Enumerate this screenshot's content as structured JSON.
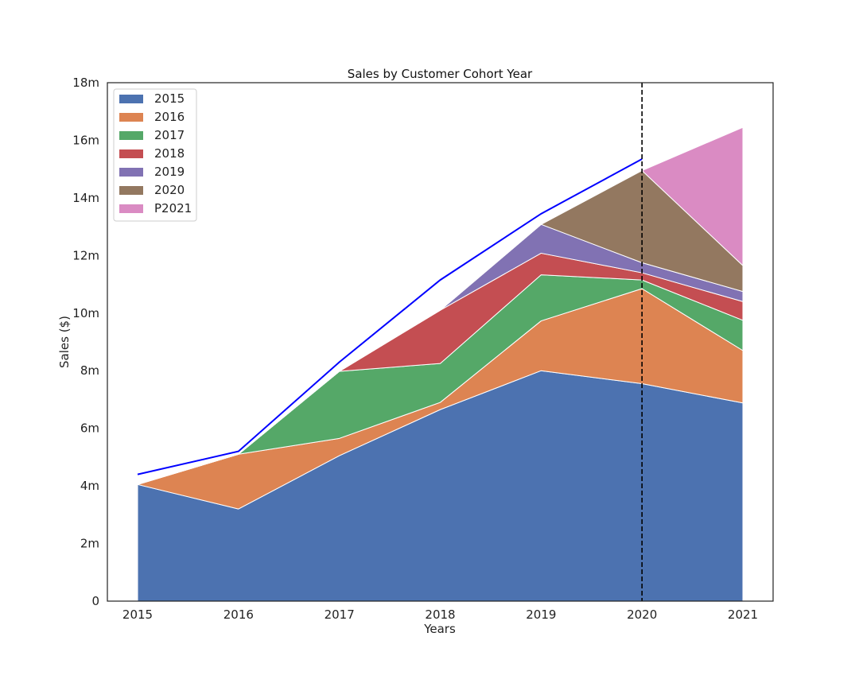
{
  "chart_data": {
    "type": "area",
    "title": "Sales by Customer Cohort Year",
    "xlabel": "Years",
    "ylabel": "Sales ($)",
    "x": [
      "2015",
      "2016",
      "2017",
      "2018",
      "2019",
      "2020",
      "2021"
    ],
    "ylim": [
      0,
      18
    ],
    "y_ticks": [
      0,
      2,
      4,
      6,
      8,
      10,
      12,
      14,
      16,
      18
    ],
    "y_tick_labels": [
      "0",
      "2m",
      "4m",
      "6m",
      "8m",
      "10m",
      "12m",
      "14m",
      "16m",
      "18m"
    ],
    "grid": false,
    "legend_position": "top-left",
    "stacked": true,
    "series": [
      {
        "name": "2015",
        "color": "#4c72b0",
        "values": [
          4.05,
          3.2,
          5.05,
          6.65,
          8.0,
          7.55,
          6.88
        ]
      },
      {
        "name": "2016",
        "color": "#dd8452",
        "values": [
          0,
          1.9,
          0.6,
          0.25,
          1.73,
          3.3,
          1.82
        ]
      },
      {
        "name": "2017",
        "color": "#55a868",
        "values": [
          0,
          0,
          2.33,
          1.35,
          1.6,
          0.3,
          1.05
        ]
      },
      {
        "name": "2018",
        "color": "#c44e52",
        "values": [
          0,
          0,
          0,
          1.85,
          0.75,
          0.25,
          0.65
        ]
      },
      {
        "name": "2019",
        "color": "#8172b3",
        "values": [
          0,
          0,
          0,
          0,
          1.0,
          0.35,
          0.35
        ]
      },
      {
        "name": "2020",
        "color": "#937860",
        "values": [
          0,
          0,
          0,
          0,
          0,
          3.2,
          0.9
        ]
      },
      {
        "name": "P2021",
        "color": "#da8bc3",
        "values": [
          0,
          0,
          0,
          0,
          0,
          0,
          4.8
        ]
      }
    ],
    "total_line": {
      "color": "#0000ff",
      "x": [
        "2015",
        "2016",
        "2017",
        "2018",
        "2019",
        "2020"
      ],
      "values": [
        4.4,
        5.2,
        8.3,
        11.15,
        13.45,
        15.35
      ]
    },
    "vline": {
      "x": "2020",
      "style": "dashed",
      "color": "#000000"
    }
  }
}
